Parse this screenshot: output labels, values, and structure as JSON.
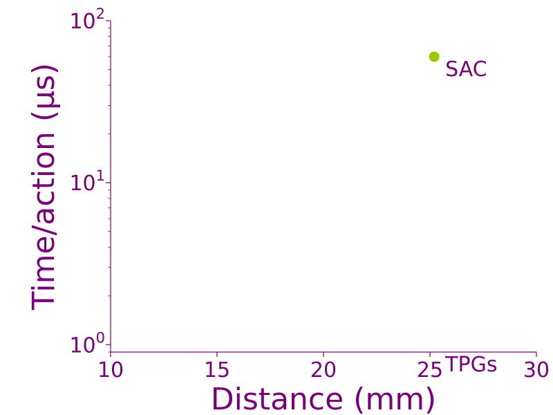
{
  "colors": {
    "axis": "#7a007a",
    "text": "#7a007a",
    "point": "#99cc00"
  },
  "chart_data": {
    "type": "scatter",
    "xlabel": "Distance (mm)",
    "ylabel": "Time/action (µs)",
    "xlim": [
      10,
      30
    ],
    "ylim": [
      0.9,
      100
    ],
    "yscale": "log",
    "grid": false,
    "x_ticks": [
      "10",
      "15",
      "20",
      "25",
      "30"
    ],
    "x_tick_values": [
      10,
      15,
      20,
      25,
      30
    ],
    "y_ticks": [
      {
        "value": 1,
        "base": "10",
        "exp": "0"
      },
      {
        "value": 10,
        "base": "10",
        "exp": "1"
      },
      {
        "value": 100,
        "base": "10",
        "exp": "2"
      }
    ],
    "points": [
      {
        "label": "SAC",
        "x": 25.2,
        "y": 60
      }
    ],
    "annotations": [
      {
        "text": "SAC",
        "x": 25.2,
        "y": 60
      },
      {
        "text": "TPGs",
        "x": 25.2,
        "y": 0.9
      }
    ]
  }
}
